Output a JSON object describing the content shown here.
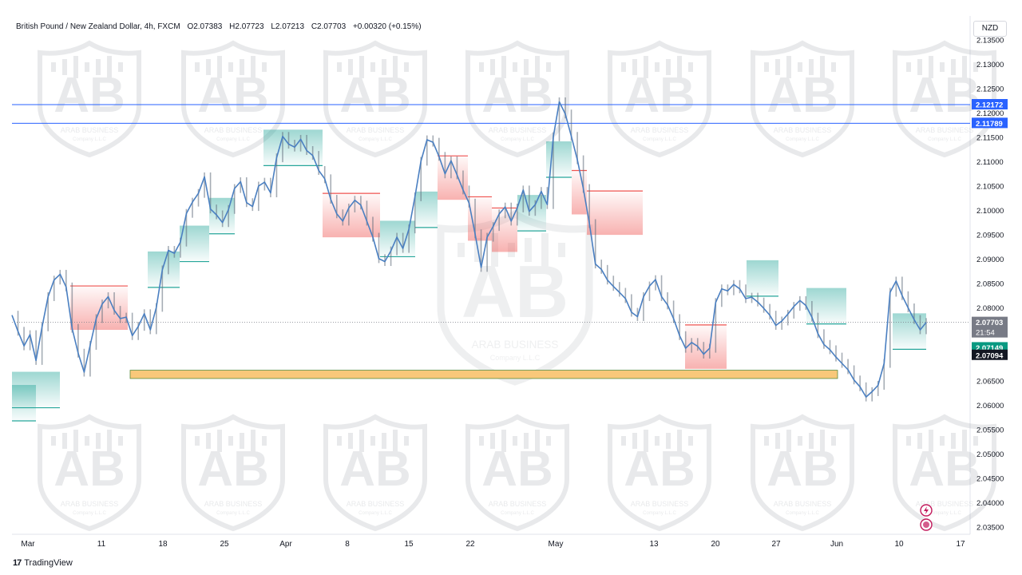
{
  "header": {
    "symbol": "British Pound / New Zealand Dollar, 4h, FXCM",
    "open": "O2.07383",
    "high": "H2.07723",
    "low": "L2.07213",
    "close": "C2.07703",
    "change": "+0.00320 (+0.15%)"
  },
  "currency_button": "NZD",
  "branding": {
    "logo_glyph": "17",
    "name": "TradingView"
  },
  "watermark": {
    "brand_text": "ARAB BUSINESS",
    "sub_text": "Company L.L.C"
  },
  "colors": {
    "line": "#4a7fc1",
    "supertrend_up": "#26a69a",
    "supertrend_down": "#ef5350",
    "zone_fill": "#f9c87a",
    "zone_border": "#5b8a3a",
    "level_line": "#2962ff",
    "grid_text": "#131722"
  },
  "chart_data": {
    "type": "line",
    "title": "British Pound / New Zealand Dollar, 4h, FXCM",
    "ylim": [
      2.0335,
      2.138
    ],
    "x_ticks": [
      "Mar",
      "11",
      "18",
      "25",
      "Apr",
      "8",
      "15",
      "22",
      "May",
      "13",
      "20",
      "27",
      "Jun",
      "10",
      "17"
    ],
    "y_ticks": [
      "2.13500",
      "2.13000",
      "2.12500",
      "2.12000",
      "2.11500",
      "2.11000",
      "2.10500",
      "2.10000",
      "2.09500",
      "2.09000",
      "2.08500",
      "2.08000",
      "2.07500",
      "2.07000",
      "2.06500",
      "2.06000",
      "2.05500",
      "2.05000",
      "2.04500",
      "2.04000",
      "2.03500"
    ],
    "grid": false,
    "series": [
      {
        "values": [
          2.0785,
          2.0752,
          2.0722,
          2.0745,
          2.0692,
          2.0761,
          2.0823,
          2.0857,
          2.0869,
          2.0843,
          2.0758,
          2.0707,
          2.0668,
          2.0723,
          2.0778,
          2.0808,
          2.0823,
          2.0795,
          2.0778,
          2.0781,
          2.0743,
          2.0762,
          2.0788,
          2.0755,
          2.0801,
          2.0878,
          2.0918,
          2.0912,
          2.0935,
          2.0994,
          2.1017,
          2.1035,
          2.1069,
          2.1003,
          2.0991,
          2.0975,
          2.1002,
          2.1045,
          2.1059,
          2.1016,
          2.1008,
          2.105,
          2.1058,
          2.1036,
          2.1108,
          2.1152,
          2.1136,
          2.113,
          2.1146,
          2.1123,
          2.1113,
          2.1082,
          2.1065,
          2.1023,
          2.0993,
          2.0978,
          2.1005,
          2.1021,
          2.1011,
          2.0978,
          2.0945,
          2.0901,
          2.0895,
          2.0917,
          2.0945,
          2.0922,
          2.0962,
          2.1028,
          2.1101,
          2.1145,
          2.114,
          2.1111,
          2.1075,
          2.1102,
          2.1073,
          2.1042,
          2.1015,
          2.0952,
          2.0883,
          2.0945,
          2.0967,
          2.0993,
          2.1007,
          2.0978,
          2.1005,
          2.1042,
          2.0998,
          2.1012,
          2.1039,
          2.1012,
          2.1151,
          2.1223,
          2.1198,
          2.1152,
          2.1104,
          2.1045,
          2.0973,
          2.089,
          2.0879,
          2.0857,
          2.0844,
          2.0832,
          2.0819,
          2.0791,
          2.0782,
          2.0823,
          2.0845,
          2.0858,
          2.0823,
          2.0806,
          2.0778,
          2.0743,
          2.0717,
          2.0729,
          2.0721,
          2.0705,
          2.0717,
          2.0811,
          2.0839,
          2.0835,
          2.0848,
          2.0839,
          2.0819,
          2.0822,
          2.0812,
          2.0799,
          2.0785,
          2.0764,
          2.0773,
          2.0787,
          2.0803,
          2.0815,
          2.0805,
          2.0781,
          2.0747,
          2.0725,
          2.0714,
          2.0699,
          2.0686,
          2.0673,
          2.0652,
          2.0638,
          2.0617,
          2.0628,
          2.0641,
          2.0686,
          2.0832,
          2.0855,
          2.0825,
          2.08,
          2.0776,
          2.0755,
          2.077
        ]
      }
    ],
    "price_labels": [
      {
        "value": "2.12172",
        "kind": "level"
      },
      {
        "value": "2.11789",
        "kind": "level"
      },
      {
        "value": "2.07703",
        "kind": "current",
        "countdown": "21:54"
      },
      {
        "value": "2.07149",
        "kind": "supertrend"
      },
      {
        "value": "2.07094",
        "kind": "black"
      }
    ],
    "levels": [
      2.12172,
      2.11789
    ],
    "current_price": 2.07703,
    "support_zone": {
      "from": 2.0655,
      "to": 2.0672,
      "start_date": "12",
      "end_date": "Jun"
    }
  }
}
